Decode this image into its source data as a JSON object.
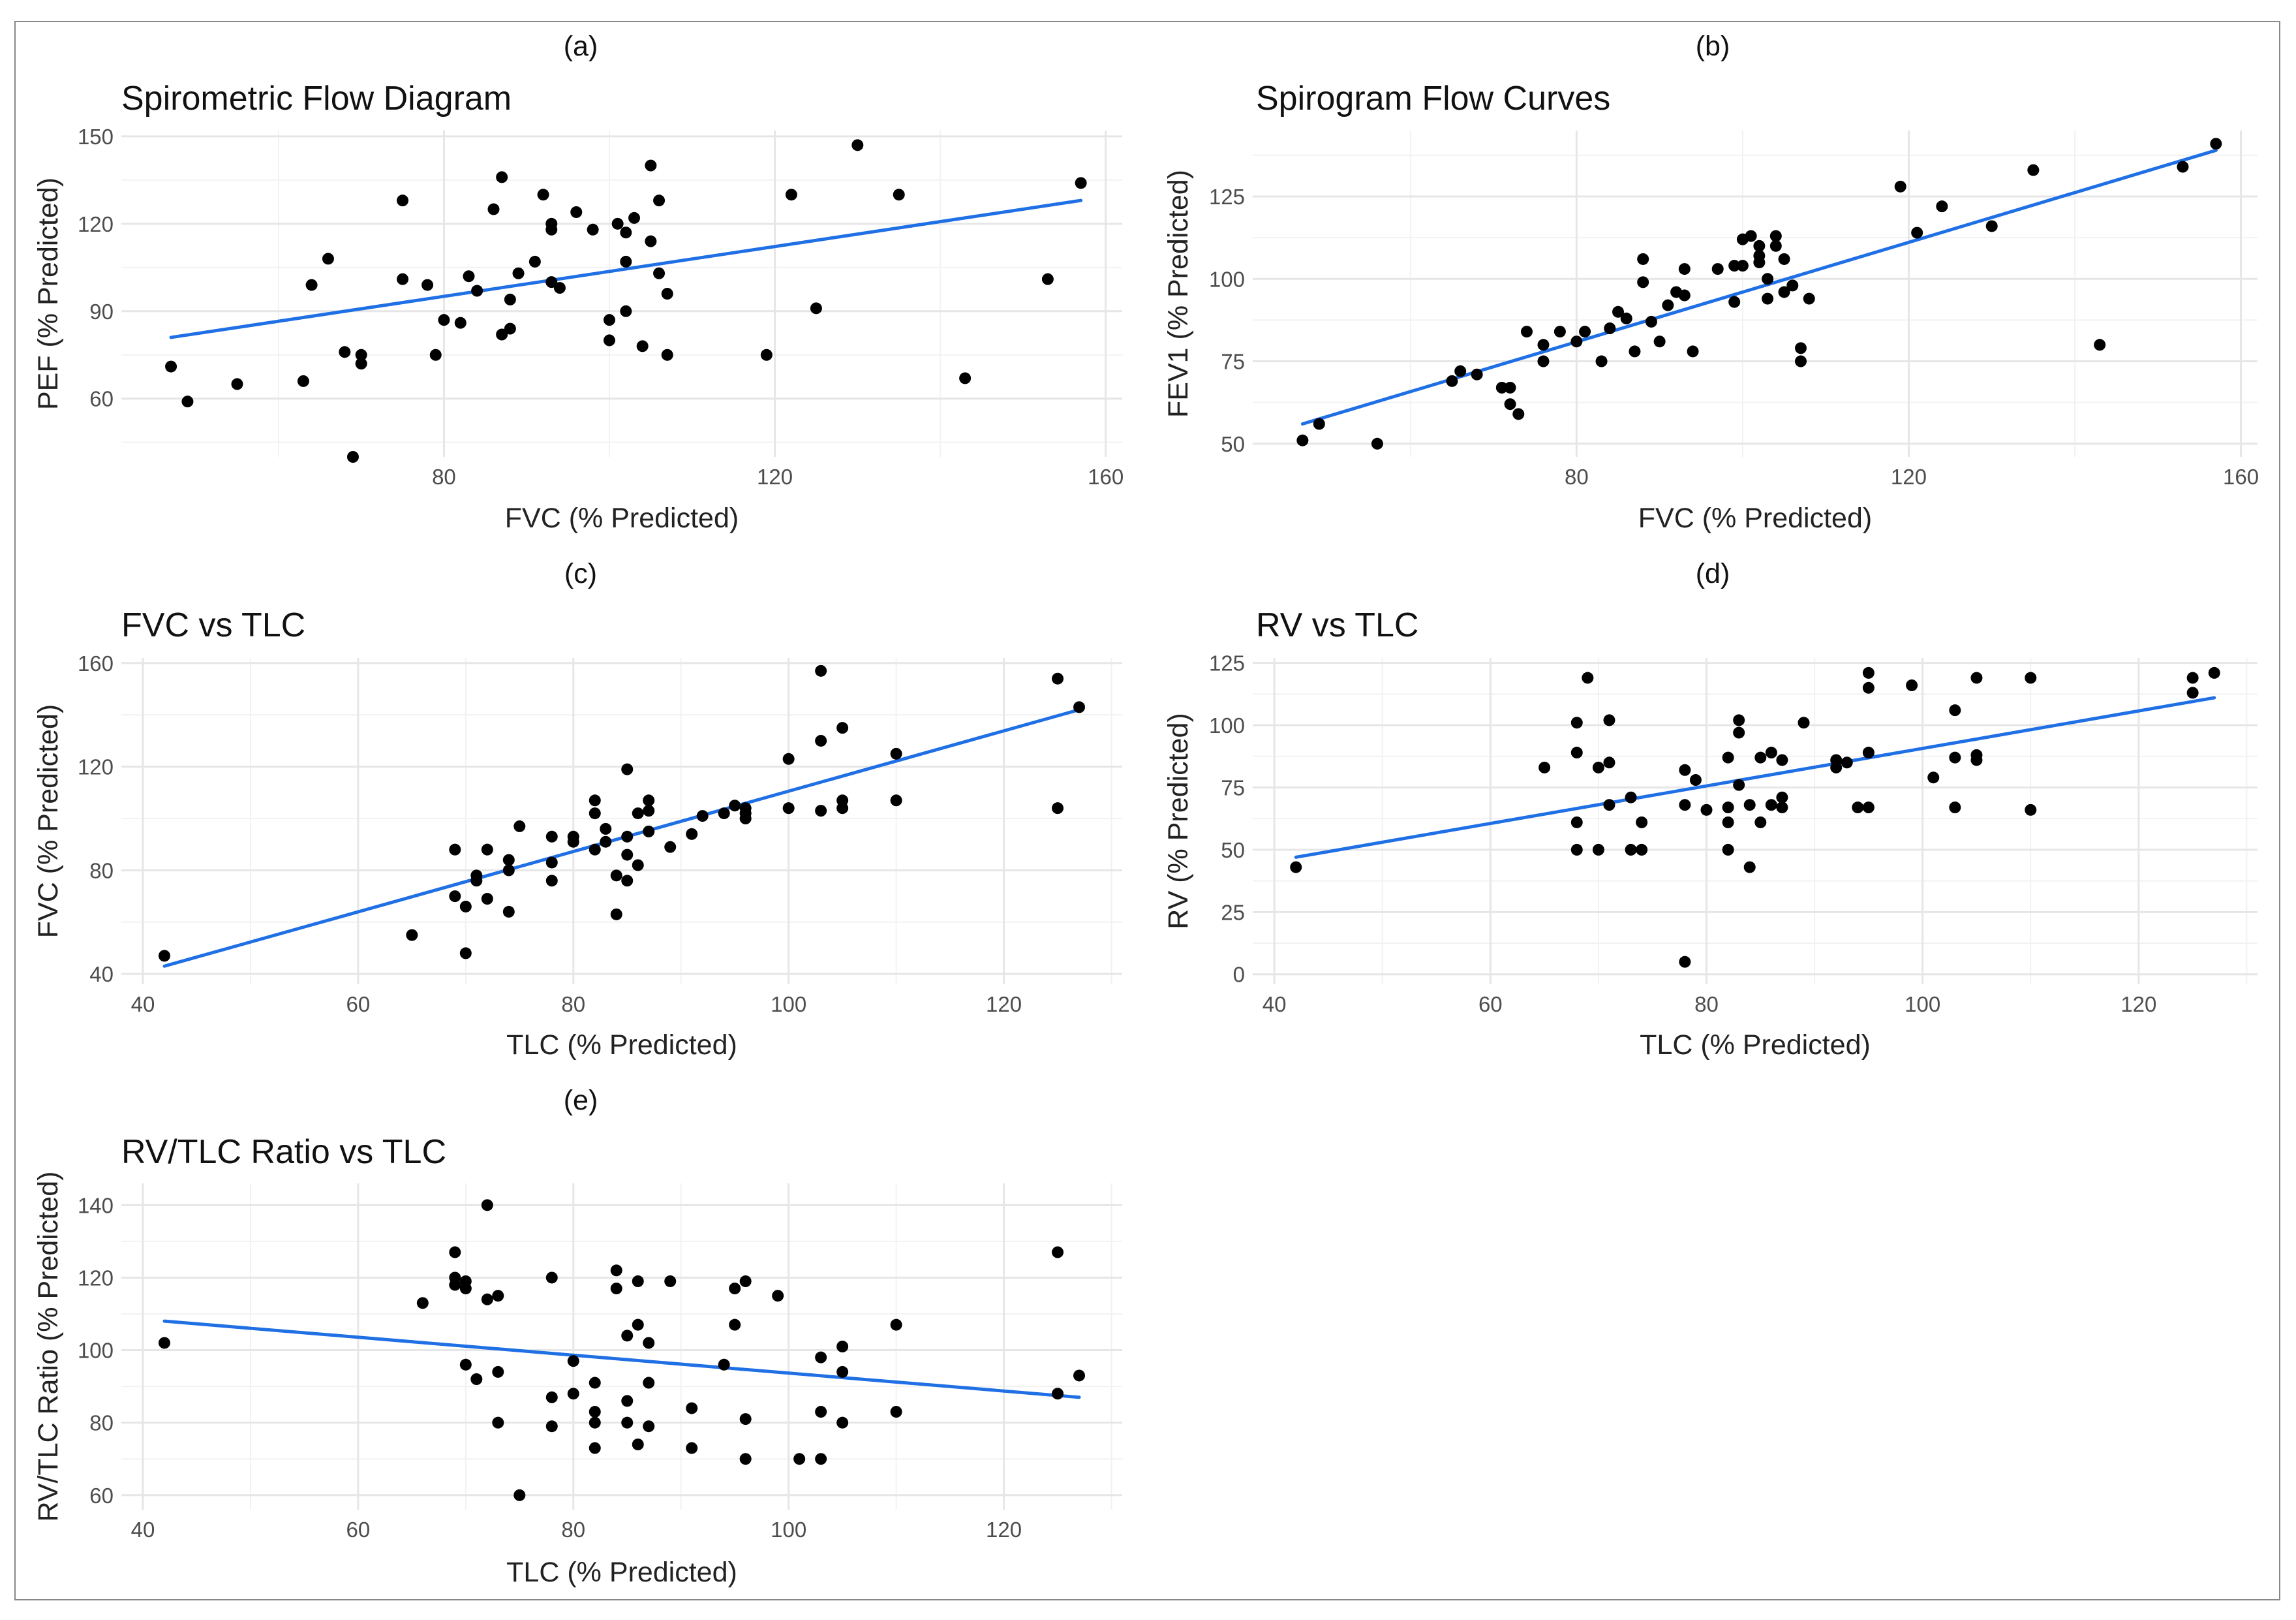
{
  "colors": {
    "fit_line": "#1f6fe5",
    "points": "#000000",
    "grid": "#e6e6e6",
    "text": "#111111"
  },
  "chart_data": [
    {
      "id": "a",
      "type": "scatter",
      "panel_label": "(a)",
      "title": "Spirometric Flow Diagram",
      "xlabel": "FVC (% Predicted)",
      "ylabel": "PEF (% Predicted)",
      "xlim": [
        41,
        162
      ],
      "ylim": [
        40,
        152
      ],
      "xticks": [
        80,
        120,
        160
      ],
      "yticks": [
        60,
        90,
        120,
        150
      ],
      "trend": {
        "x": [
          47,
          157
        ],
        "y": [
          81,
          128
        ]
      },
      "points": [
        [
          47,
          71
        ],
        [
          49,
          59
        ],
        [
          55,
          65
        ],
        [
          63,
          66
        ],
        [
          64,
          99
        ],
        [
          66,
          108
        ],
        [
          68,
          76
        ],
        [
          69,
          40
        ],
        [
          70,
          75
        ],
        [
          70,
          72
        ],
        [
          75,
          128
        ],
        [
          75,
          101
        ],
        [
          78,
          99
        ],
        [
          79,
          75
        ],
        [
          80,
          87
        ],
        [
          82,
          86
        ],
        [
          83,
          102
        ],
        [
          84,
          97
        ],
        [
          86,
          125
        ],
        [
          87,
          82
        ],
        [
          87,
          136
        ],
        [
          88,
          84
        ],
        [
          88,
          94
        ],
        [
          89,
          103
        ],
        [
          91,
          107
        ],
        [
          92,
          130
        ],
        [
          93,
          118
        ],
        [
          93,
          120
        ],
        [
          93,
          100
        ],
        [
          94,
          98
        ],
        [
          96,
          124
        ],
        [
          98,
          118
        ],
        [
          100,
          87
        ],
        [
          100,
          80
        ],
        [
          101,
          120
        ],
        [
          102,
          117
        ],
        [
          102,
          107
        ],
        [
          102,
          90
        ],
        [
          103,
          122
        ],
        [
          104,
          78
        ],
        [
          105,
          140
        ],
        [
          105,
          114
        ],
        [
          106,
          128
        ],
        [
          106,
          103
        ],
        [
          107,
          96
        ],
        [
          107,
          75
        ],
        [
          119,
          75
        ],
        [
          122,
          130
        ],
        [
          125,
          91
        ],
        [
          130,
          147
        ],
        [
          135,
          130
        ],
        [
          143,
          67
        ],
        [
          153,
          101
        ],
        [
          157,
          134
        ]
      ]
    },
    {
      "id": "b",
      "type": "scatter",
      "panel_label": "(b)",
      "title": "Spirogram Flow Curves",
      "xlabel": "FVC (% Predicted)",
      "ylabel": "FEV1 (% Predicted)",
      "xlim": [
        41,
        162
      ],
      "ylim": [
        46,
        145
      ],
      "xticks": [
        80,
        120,
        160
      ],
      "yticks": [
        50,
        75,
        100,
        125
      ],
      "trend": {
        "x": [
          47,
          157
        ],
        "y": [
          56,
          139
        ]
      },
      "points": [
        [
          47,
          51
        ],
        [
          49,
          56
        ],
        [
          56,
          50
        ],
        [
          65,
          69
        ],
        [
          66,
          72
        ],
        [
          68,
          71
        ],
        [
          71,
          67
        ],
        [
          72,
          67
        ],
        [
          72,
          62
        ],
        [
          73,
          59
        ],
        [
          74,
          84
        ],
        [
          76,
          75
        ],
        [
          76,
          80
        ],
        [
          78,
          84
        ],
        [
          80,
          81
        ],
        [
          81,
          84
        ],
        [
          83,
          75
        ],
        [
          84,
          85
        ],
        [
          85,
          90
        ],
        [
          86,
          88
        ],
        [
          87,
          78
        ],
        [
          88,
          106
        ],
        [
          88,
          99
        ],
        [
          89,
          87
        ],
        [
          90,
          81
        ],
        [
          91,
          92
        ],
        [
          92,
          96
        ],
        [
          93,
          95
        ],
        [
          93,
          103
        ],
        [
          94,
          78
        ],
        [
          97,
          103
        ],
        [
          99,
          93
        ],
        [
          99,
          104
        ],
        [
          100,
          112
        ],
        [
          100,
          104
        ],
        [
          101,
          113
        ],
        [
          102,
          110
        ],
        [
          102,
          107
        ],
        [
          102,
          105
        ],
        [
          103,
          94
        ],
        [
          103,
          100
        ],
        [
          104,
          113
        ],
        [
          104,
          110
        ],
        [
          105,
          96
        ],
        [
          105,
          106
        ],
        [
          106,
          98
        ],
        [
          107,
          75
        ],
        [
          107,
          79
        ],
        [
          108,
          94
        ],
        [
          119,
          128
        ],
        [
          121,
          114
        ],
        [
          124,
          122
        ],
        [
          130,
          116
        ],
        [
          135,
          133
        ],
        [
          143,
          80
        ],
        [
          153,
          134
        ],
        [
          157,
          141
        ]
      ]
    },
    {
      "id": "c",
      "type": "scatter",
      "panel_label": "(c)",
      "title": "FVC vs TLC",
      "xlabel": "TLC (% Predicted)",
      "ylabel": "FVC (% Predicted)",
      "xlim": [
        38,
        131
      ],
      "ylim": [
        36,
        162
      ],
      "xticks": [
        40,
        60,
        80,
        100,
        120
      ],
      "yticks": [
        40,
        80,
        120,
        160
      ],
      "trend": {
        "x": [
          42,
          127
        ],
        "y": [
          43,
          142
        ]
      },
      "points": [
        [
          42,
          47
        ],
        [
          65,
          55
        ],
        [
          69,
          70
        ],
        [
          69,
          88
        ],
        [
          70,
          48
        ],
        [
          70,
          66
        ],
        [
          71,
          76
        ],
        [
          71,
          78
        ],
        [
          72,
          69
        ],
        [
          72,
          88
        ],
        [
          74,
          64
        ],
        [
          74,
          84
        ],
        [
          74,
          80
        ],
        [
          75,
          97
        ],
        [
          78,
          76
        ],
        [
          78,
          93
        ],
        [
          78,
          83
        ],
        [
          80,
          93
        ],
        [
          80,
          91
        ],
        [
          82,
          88
        ],
        [
          82,
          102
        ],
        [
          82,
          107
        ],
        [
          83,
          91
        ],
        [
          83,
          96
        ],
        [
          84,
          78
        ],
        [
          84,
          63
        ],
        [
          85,
          86
        ],
        [
          85,
          76
        ],
        [
          85,
          119
        ],
        [
          85,
          93
        ],
        [
          86,
          102
        ],
        [
          86,
          82
        ],
        [
          87,
          103
        ],
        [
          87,
          95
        ],
        [
          87,
          107
        ],
        [
          89,
          89
        ],
        [
          91,
          94
        ],
        [
          92,
          101
        ],
        [
          94,
          102
        ],
        [
          95,
          105
        ],
        [
          96,
          102
        ],
        [
          96,
          104
        ],
        [
          96,
          100
        ],
        [
          100,
          104
        ],
        [
          100,
          123
        ],
        [
          103,
          103
        ],
        [
          103,
          130
        ],
        [
          103,
          157
        ],
        [
          105,
          104
        ],
        [
          105,
          107
        ],
        [
          105,
          135
        ],
        [
          110,
          107
        ],
        [
          110,
          125
        ],
        [
          125,
          154
        ],
        [
          125,
          104
        ],
        [
          127,
          143
        ]
      ]
    },
    {
      "id": "d",
      "type": "scatter",
      "panel_label": "(d)",
      "title": "RV vs TLC",
      "xlabel": "TLC (% Predicted)",
      "ylabel": "RV (% Predicted)",
      "xlim": [
        38,
        131
      ],
      "ylim": [
        -4,
        127
      ],
      "xticks": [
        40,
        60,
        80,
        100,
        120
      ],
      "yticks": [
        0,
        25,
        50,
        75,
        100,
        125
      ],
      "trend": {
        "x": [
          42,
          127
        ],
        "y": [
          47,
          111
        ]
      },
      "points": [
        [
          42,
          43
        ],
        [
          65,
          83
        ],
        [
          68,
          101
        ],
        [
          68,
          89
        ],
        [
          68,
          61
        ],
        [
          68,
          50
        ],
        [
          69,
          119
        ],
        [
          70,
          50
        ],
        [
          70,
          83
        ],
        [
          71,
          68
        ],
        [
          71,
          102
        ],
        [
          71,
          85
        ],
        [
          73,
          71
        ],
        [
          73,
          50
        ],
        [
          74,
          61
        ],
        [
          74,
          50
        ],
        [
          78,
          5
        ],
        [
          78,
          82
        ],
        [
          78,
          68
        ],
        [
          79,
          78
        ],
        [
          80,
          66
        ],
        [
          82,
          87
        ],
        [
          82,
          61
        ],
        [
          82,
          50
        ],
        [
          82,
          67
        ],
        [
          83,
          102
        ],
        [
          83,
          97
        ],
        [
          83,
          76
        ],
        [
          84,
          68
        ],
        [
          84,
          43
        ],
        [
          85,
          87
        ],
        [
          85,
          61
        ],
        [
          86,
          89
        ],
        [
          86,
          68
        ],
        [
          87,
          86
        ],
        [
          87,
          71
        ],
        [
          87,
          67
        ],
        [
          89,
          101
        ],
        [
          92,
          86
        ],
        [
          92,
          83
        ],
        [
          93,
          85
        ],
        [
          94,
          67
        ],
        [
          95,
          115
        ],
        [
          95,
          121
        ],
        [
          95,
          89
        ],
        [
          95,
          67
        ],
        [
          99,
          116
        ],
        [
          101,
          79
        ],
        [
          103,
          106
        ],
        [
          103,
          87
        ],
        [
          103,
          67
        ],
        [
          105,
          119
        ],
        [
          105,
          86
        ],
        [
          105,
          88
        ],
        [
          110,
          119
        ],
        [
          110,
          66
        ],
        [
          125,
          119
        ],
        [
          125,
          113
        ],
        [
          127,
          121
        ]
      ]
    },
    {
      "id": "e",
      "type": "scatter",
      "panel_label": "(e)",
      "title": "RV/TLC Ratio vs TLC",
      "xlabel": "TLC (% Predicted)",
      "ylabel": "RV/TLC Ratio (% Predicted)",
      "xlim": [
        38,
        131
      ],
      "ylim": [
        56,
        146
      ],
      "xticks": [
        40,
        60,
        80,
        100,
        120
      ],
      "yticks": [
        60,
        80,
        100,
        120,
        140
      ],
      "trend": {
        "x": [
          42,
          127
        ],
        "y": [
          108,
          87
        ]
      },
      "points": [
        [
          42,
          102
        ],
        [
          66,
          113
        ],
        [
          69,
          127
        ],
        [
          69,
          118
        ],
        [
          69,
          120
        ],
        [
          70,
          117
        ],
        [
          70,
          96
        ],
        [
          70,
          119
        ],
        [
          71,
          92
        ],
        [
          72,
          140
        ],
        [
          72,
          114
        ],
        [
          73,
          94
        ],
        [
          73,
          80
        ],
        [
          73,
          115
        ],
        [
          75,
          60
        ],
        [
          78,
          79
        ],
        [
          78,
          87
        ],
        [
          78,
          120
        ],
        [
          80,
          97
        ],
        [
          80,
          88
        ],
        [
          82,
          80
        ],
        [
          82,
          83
        ],
        [
          82,
          91
        ],
        [
          82,
          73
        ],
        [
          84,
          117
        ],
        [
          84,
          122
        ],
        [
          85,
          80
        ],
        [
          85,
          104
        ],
        [
          85,
          86
        ],
        [
          86,
          74
        ],
        [
          86,
          107
        ],
        [
          86,
          119
        ],
        [
          87,
          91
        ],
        [
          87,
          79
        ],
        [
          87,
          102
        ],
        [
          89,
          119
        ],
        [
          91,
          84
        ],
        [
          91,
          73
        ],
        [
          94,
          96
        ],
        [
          95,
          117
        ],
        [
          95,
          107
        ],
        [
          96,
          119
        ],
        [
          96,
          81
        ],
        [
          96,
          70
        ],
        [
          99,
          115
        ],
        [
          101,
          70
        ],
        [
          103,
          98
        ],
        [
          103,
          83
        ],
        [
          103,
          70
        ],
        [
          105,
          80
        ],
        [
          105,
          94
        ],
        [
          105,
          101
        ],
        [
          110,
          107
        ],
        [
          110,
          83
        ],
        [
          125,
          127
        ],
        [
          125,
          88
        ],
        [
          127,
          93
        ]
      ]
    }
  ]
}
